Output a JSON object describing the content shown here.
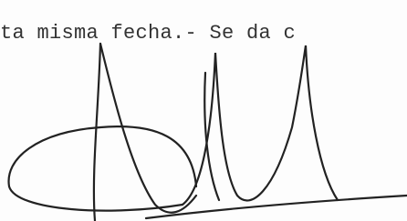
{
  "text_line": "ta misma fecha.- Se da c"
}
